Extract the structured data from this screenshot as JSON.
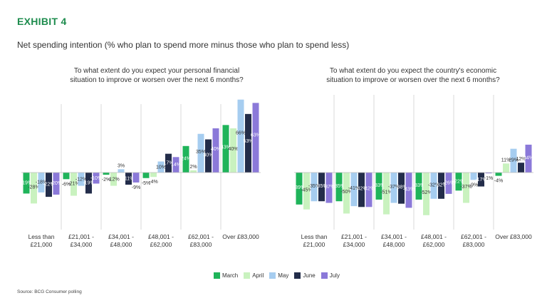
{
  "exhibit_label": "EXHIBIT 4",
  "subtitle": "Net spending intention (% who plan to spend more minus those who plan to spend less)",
  "source": "Source: BCG Consumer polling",
  "colors": {
    "March": "#1fb45a",
    "April": "#c9f2bf",
    "May": "#a6cdf0",
    "June": "#232d4a",
    "July": "#8b79d9"
  },
  "chart_data": [
    {
      "type": "bar",
      "title_lines": [
        "To what extent do you expect your personal financial",
        "situation to improve or worsen over the next 6 months?"
      ],
      "categories": [
        [
          "Less than",
          "£21,000"
        ],
        [
          "£21,001 -",
          "£34,000"
        ],
        [
          "£34,001 -",
          "£48,000"
        ],
        [
          "£48,001 -",
          "£62,000"
        ],
        [
          "£62,001 -",
          "£83,000"
        ],
        [
          "Over £83,000"
        ]
      ],
      "series": [
        {
          "name": "March",
          "values": [
            -19,
            -6,
            -2,
            -5,
            24,
            43
          ]
        },
        {
          "name": "April",
          "values": [
            -28,
            -21,
            -12,
            -4,
            2,
            40
          ]
        },
        {
          "name": "May",
          "values": [
            -18,
            -12,
            3,
            10,
            35,
            66
          ]
        },
        {
          "name": "June",
          "values": [
            -22,
            -19,
            -11,
            17,
            30,
            53
          ]
        },
        {
          "name": "July",
          "values": [
            -20,
            -10,
            -9,
            14,
            40,
            63
          ]
        }
      ],
      "labels": [
        [
          "-19%",
          "-28%",
          "-18%",
          "-22%",
          "-20%"
        ],
        [
          "-6%",
          "-21%",
          "-12%",
          "-19%",
          "-10%"
        ],
        [
          "-2%",
          "-12%",
          "3%",
          "-11%",
          "-9%"
        ],
        [
          "-5%",
          "-4%",
          "10%",
          "17%",
          "14%"
        ],
        [
          "24%",
          "2%",
          "35%",
          "30%",
          "40%"
        ],
        [
          "43%",
          "40%",
          "66%",
          "53%",
          "63%"
        ]
      ]
    },
    {
      "type": "bar",
      "title_lines": [
        "To what extent do you expect the country's economic",
        "situation to improve or worsen over the next 6 months?"
      ],
      "categories": [
        [
          "Less than",
          "£21,000"
        ],
        [
          "£21,001 -",
          "£34,000"
        ],
        [
          "£34,001 -",
          "£48,000"
        ],
        [
          "£48,001 -",
          "£62,000"
        ],
        [
          "£62,001 -",
          "£83,000"
        ],
        [
          "Over £83,000"
        ]
      ],
      "series": [
        {
          "name": "March",
          "values": [
            -39,
            -35,
            -33,
            -33,
            -22,
            -4
          ]
        },
        {
          "name": "April",
          "values": [
            -45,
            -50,
            -51,
            -52,
            -37,
            11
          ]
        },
        {
          "name": "May",
          "values": [
            -35,
            -41,
            -37,
            -32,
            -9,
            29
          ]
        },
        {
          "name": "June",
          "values": [
            -35,
            -42,
            -38,
            -32,
            -17,
            12
          ]
        },
        {
          "name": "July",
          "values": [
            -37,
            -42,
            -43,
            -26,
            -1,
            34
          ]
        }
      ],
      "labels": [
        [
          "-39%",
          "-45%",
          "-35%",
          "-35%",
          "-37%"
        ],
        [
          "-35%",
          "-50%",
          "-41%",
          "-42%",
          "-42%"
        ],
        [
          "-33%",
          "-51%",
          "-37%",
          "-38%",
          "-43%"
        ],
        [
          "-33%",
          "-52%",
          "-32%",
          "-32%",
          "-26%"
        ],
        [
          "-22%",
          "-37%",
          "-9%",
          "-17%",
          "-1%"
        ],
        [
          "-4%",
          "11%",
          "29%",
          "12%",
          "34%"
        ]
      ]
    }
  ]
}
